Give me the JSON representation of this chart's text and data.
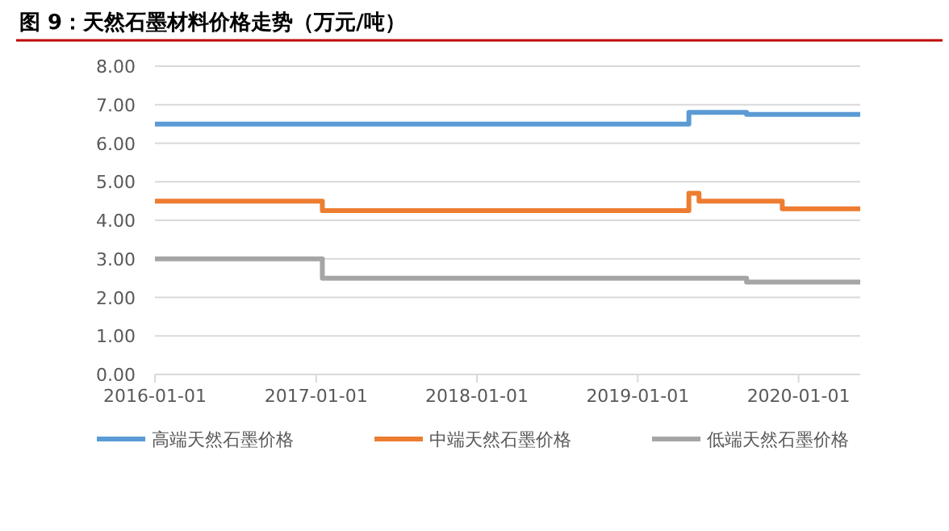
{
  "chart_data": {
    "type": "step",
    "title": "图 9：天然石墨材料价格走势（万元/吨）",
    "series": [
      {
        "name": "高端天然石墨价格",
        "color": "#5b9bd5",
        "x": [
          "2016-01-01",
          "2019-04-27",
          "2019-09-05",
          "2020-05-20"
        ],
        "values": [
          6.5,
          6.8,
          6.75,
          6.75
        ]
      },
      {
        "name": "中端天然石墨价格",
        "color": "#ed7d31",
        "x": [
          "2016-01-01",
          "2017-01-15",
          "2019-04-27",
          "2019-05-20",
          "2019-11-25",
          "2020-05-20"
        ],
        "values": [
          4.5,
          4.25,
          4.7,
          4.5,
          4.3,
          4.3
        ]
      },
      {
        "name": "低端天然石墨价格",
        "color": "#a5a5a5",
        "x": [
          "2016-01-01",
          "2017-01-15",
          "2019-09-05",
          "2020-05-20"
        ],
        "values": [
          3.0,
          2.5,
          2.4,
          2.4
        ]
      }
    ],
    "xlim": [
      "2016-01-01",
      "2020-05-20"
    ],
    "xticks": [
      "2016-01-01",
      "2017-01-01",
      "2018-01-01",
      "2019-01-01",
      "2020-01-01"
    ],
    "ylim": [
      0,
      8
    ],
    "yticks": [
      {
        "value": 0,
        "label": "0.00"
      },
      {
        "value": 1,
        "label": "1.00"
      },
      {
        "value": 2,
        "label": "2.00"
      },
      {
        "value": 3,
        "label": "3.00"
      },
      {
        "value": 4,
        "label": "4.00"
      },
      {
        "value": 5,
        "label": "5.00"
      },
      {
        "value": 6,
        "label": "6.00"
      },
      {
        "value": 7,
        "label": "7.00"
      },
      {
        "value": 8,
        "label": "8.00"
      }
    ],
    "grid": "y",
    "legend": "bottom",
    "line_style": "solid",
    "marker": "none"
  }
}
